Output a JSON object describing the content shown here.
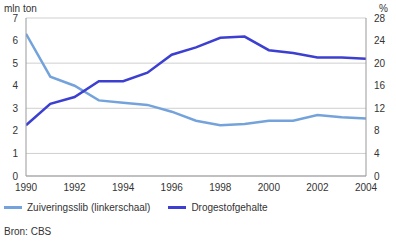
{
  "chart_data": {
    "type": "line",
    "y_label": "mln ton",
    "y2_label": "%",
    "source": "Bron: CBS",
    "x": [
      1990,
      1991,
      1992,
      1993,
      1994,
      1995,
      1996,
      1997,
      1998,
      1999,
      2000,
      2001,
      2002,
      2003,
      2004
    ],
    "xlim": [
      1990,
      2004
    ],
    "xticks": [
      1990,
      1992,
      1994,
      1996,
      1998,
      2000,
      2002,
      2004
    ],
    "ylim": [
      0,
      7
    ],
    "yticks": [
      0,
      1,
      2,
      3,
      4,
      5,
      6,
      7
    ],
    "y2lim": [
      0,
      28
    ],
    "y2ticks": [
      0,
      4,
      8,
      12,
      16,
      20,
      24,
      28
    ],
    "grid": true,
    "legend": "bottom",
    "series": [
      {
        "name": "Zuiveringsslib (linkerschaal)",
        "color": "#74a3dc",
        "axis": "y",
        "values": [
          6.3,
          4.4,
          4.0,
          3.35,
          3.25,
          3.15,
          2.85,
          2.45,
          2.25,
          2.3,
          2.45,
          2.45,
          2.7,
          2.6,
          2.55
        ]
      },
      {
        "name": "Drogestofgehalte",
        "color": "#3c3fcf",
        "axis": "y2",
        "values": [
          9,
          12.8,
          14,
          16.8,
          16.8,
          18.3,
          21.5,
          22.8,
          24.5,
          24.7,
          22.3,
          21.8,
          21,
          21,
          20.8
        ]
      }
    ]
  }
}
